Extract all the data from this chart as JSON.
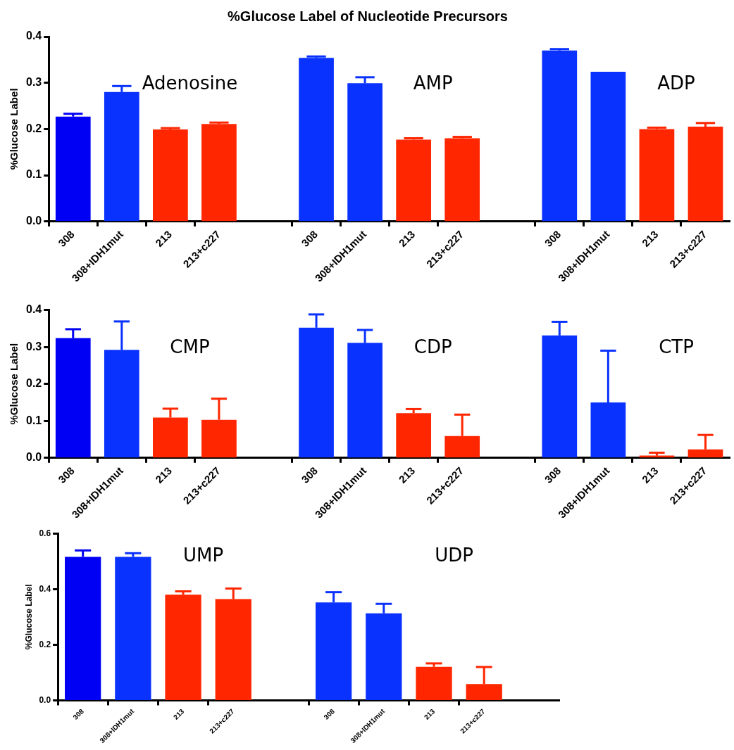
{
  "chart_data": [
    {
      "type": "bar",
      "title": "%Glucose Label of Nucleotide Precursors",
      "ylabel": "%Glucose Label",
      "categories": [
        "308",
        "308+IDH1mut",
        "213",
        "213+c227",
        null,
        "308",
        "308+IDH1mut",
        "213",
        "213+c227",
        null,
        "308",
        "308+IDH1mut",
        "213",
        "213+c227"
      ],
      "values": [
        0.227,
        0.28,
        0.199,
        0.211,
        null,
        0.354,
        0.299,
        0.177,
        0.18,
        null,
        0.37,
        0.324,
        0.2,
        0.205
      ],
      "errors": [
        0.006,
        0.013,
        0.003,
        0.003,
        null,
        0.003,
        0.013,
        0.003,
        0.003,
        null,
        0.003,
        null,
        0.003,
        0.008
      ],
      "colors": [
        "#0000f5",
        "#0a32ff",
        "#ff2600",
        "#ff2600",
        null,
        "#0a32ff",
        "#0a32ff",
        "#ff2600",
        "#ff2600",
        null,
        "#0a32ff",
        "#0a32ff",
        "#ff2600",
        "#ff2600"
      ],
      "ylim": [
        0,
        0.4
      ],
      "yticks": [
        {
          "value": 0,
          "label": "0.0"
        },
        {
          "value": 0.1,
          "label": "0.1"
        },
        {
          "value": 0.2,
          "label": "0.2"
        },
        {
          "value": 0.3,
          "label": "0.3"
        },
        {
          "value": 0.4,
          "label": "0.4"
        }
      ],
      "annotations": [
        "Adenosine",
        "AMP",
        "ADP"
      ]
    },
    {
      "type": "bar",
      "ylabel": "%Glucose Label",
      "categories": [
        "308",
        "308+IDH1mut",
        "213",
        "213+c227",
        null,
        "308",
        "308+IDH1mut",
        "213",
        "213+c227",
        null,
        "308",
        "308+IDH1mut",
        "213",
        "213+c227"
      ],
      "values": [
        0.324,
        0.292,
        0.109,
        0.103,
        null,
        0.352,
        0.311,
        0.121,
        0.059,
        null,
        0.331,
        0.15,
        0.006,
        0.023
      ],
      "errors": [
        0.024,
        0.077,
        0.024,
        0.057,
        null,
        0.036,
        0.035,
        0.011,
        0.058,
        null,
        0.037,
        0.14,
        0.008,
        0.039
      ],
      "colors": [
        "#0000f5",
        "#0a32ff",
        "#ff2600",
        "#ff2600",
        null,
        "#0a32ff",
        "#0a32ff",
        "#ff2600",
        "#ff2600",
        null,
        "#0a32ff",
        "#0a32ff",
        "#ff2600",
        "#ff2600"
      ],
      "ylim": [
        0,
        0.4
      ],
      "yticks": [
        {
          "value": 0,
          "label": "0.0"
        },
        {
          "value": 0.1,
          "label": "0.1"
        },
        {
          "value": 0.2,
          "label": "0.2"
        },
        {
          "value": 0.3,
          "label": "0.3"
        },
        {
          "value": 0.4,
          "label": "0.4"
        }
      ],
      "annotations": [
        "CMP",
        "CDP",
        "CTP"
      ]
    },
    {
      "type": "bar",
      "ylabel": "%Glucose Label",
      "categories": [
        "308",
        "308+IDH1mut",
        "213",
        "213+c227",
        null,
        "308",
        "308+IDH1mut",
        "213",
        "213+c227",
        null
      ],
      "values": [
        0.516,
        0.516,
        0.38,
        0.364,
        null,
        0.352,
        0.313,
        0.121,
        0.059,
        null
      ],
      "errors": [
        0.023,
        0.013,
        0.012,
        0.038,
        null,
        0.037,
        0.034,
        0.012,
        0.061,
        null
      ],
      "colors": [
        "#0000f5",
        "#0a32ff",
        "#ff2600",
        "#ff2600",
        null,
        "#0a32ff",
        "#0a32ff",
        "#ff2600",
        "#ff2600",
        null
      ],
      "ylim": [
        0,
        0.6
      ],
      "yticks": [
        {
          "value": 0,
          "label": "0.0"
        },
        {
          "value": 0.2,
          "label": "0.2"
        },
        {
          "value": 0.4,
          "label": "0.4"
        },
        {
          "value": 0.6,
          "label": "0.6"
        }
      ],
      "annotations": [
        "UMP",
        "UDP"
      ]
    }
  ]
}
